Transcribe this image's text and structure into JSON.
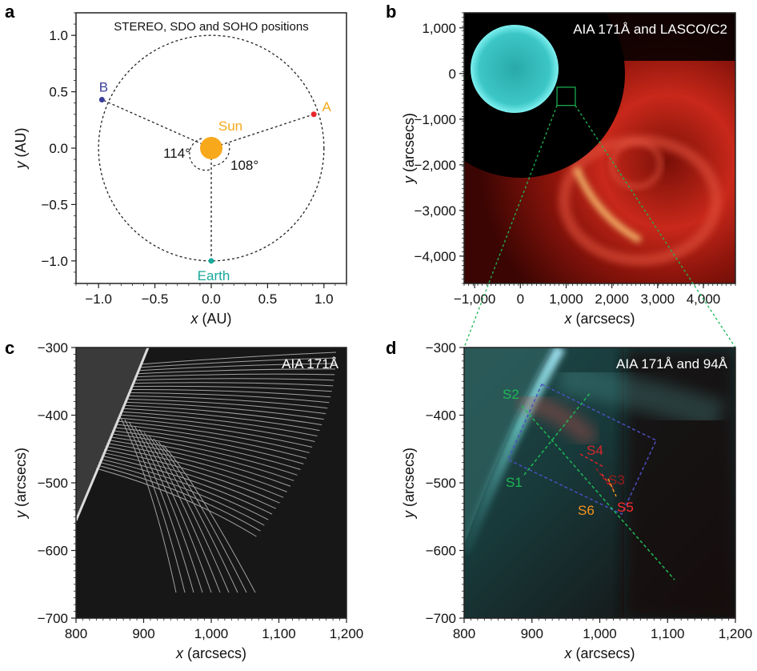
{
  "chart_data": [
    {
      "panel": "a",
      "type": "scatter",
      "title": "STEREO, SDO and SOHO positions",
      "xlabel_var": "x",
      "xlabel_unit": " (AU)",
      "ylabel_var": "y",
      "ylabel_unit": " (AU)",
      "xlim": [
        -1.2,
        1.2
      ],
      "ylim": [
        -1.2,
        1.2
      ],
      "xticks": [
        -1.0,
        -0.5,
        0.0,
        0.5,
        1.0
      ],
      "xtick_labels": [
        "−1.0",
        "−0.5",
        "0.0",
        "0.5",
        "1.0"
      ],
      "yticks": [
        1.0,
        0.5,
        0.0,
        -0.5,
        -1.0
      ],
      "ytick_labels": [
        "1.0",
        "0.5",
        "0.0",
        "−0.5",
        "−1.0"
      ],
      "orbit_radius": 1.0,
      "points": [
        {
          "label": "Sun",
          "x": 0.0,
          "y": 0.0,
          "color": "#f7a81b"
        },
        {
          "label": "A",
          "x": 0.91,
          "y": 0.3,
          "color": "#e8262b",
          "label_color": "#f7a81b"
        },
        {
          "label": "B",
          "x": -0.97,
          "y": 0.43,
          "color": "#3a3f9a"
        },
        {
          "label": "Earth",
          "x": 0.0,
          "y": -1.0,
          "color": "#19a99a"
        }
      ],
      "angles": [
        "114°",
        "108°"
      ],
      "grid": false
    },
    {
      "panel": "b",
      "type": "image",
      "title": "AIA 171Å and LASCO/C2",
      "xlabel_var": "x",
      "xlabel_unit": " (arcsecs)",
      "ylabel_var": "y",
      "ylabel_unit": " (arcsecs)",
      "xlim": [
        -1230,
        4700
      ],
      "ylim": [
        -4600,
        1330
      ],
      "xticks": [
        -1000,
        0,
        1000,
        2000,
        3000,
        4000
      ],
      "xtick_labels": [
        "−1,000",
        "0",
        "1,000",
        "2,000",
        "3,000",
        "4,000"
      ],
      "yticks": [
        1000,
        0,
        -1000,
        -2000,
        -3000,
        -4000
      ],
      "ytick_labels": [
        "1,000",
        "0",
        "−1,000",
        "−2,000",
        "−3,000",
        "−4,000"
      ],
      "zoom_box": {
        "x": [
          800,
          1200
        ],
        "y": [
          -700,
          -300
        ],
        "color": "#1db954"
      }
    },
    {
      "panel": "c",
      "type": "image",
      "title": "AIA 171Å",
      "xlabel_var": "x",
      "xlabel_unit": " (arcsecs)",
      "ylabel_var": "y",
      "ylabel_unit": " (arcsecs)",
      "xlim": [
        800,
        1200
      ],
      "ylim": [
        -700,
        -300
      ],
      "xticks": [
        800,
        900,
        1000,
        1100,
        1200
      ],
      "xtick_labels": [
        "800",
        "900",
        "1,000",
        "1,100",
        "1,200"
      ],
      "yticks": [
        -300,
        -400,
        -500,
        -600,
        -700
      ],
      "ytick_labels": [
        "−300",
        "−400",
        "−500",
        "−600",
        "−700"
      ]
    },
    {
      "panel": "d",
      "type": "image",
      "title": "AIA 171Å and 94Å",
      "xlabel_var": "x",
      "xlabel_unit": " (arcsecs)",
      "ylabel_var": "y",
      "ylabel_unit": " (arcsecs)",
      "xlim": [
        800,
        1200
      ],
      "ylim": [
        -700,
        -300
      ],
      "xticks": [
        800,
        900,
        1000,
        1100,
        1200
      ],
      "xtick_labels": [
        "800",
        "900",
        "1,000",
        "1,100",
        "1,200"
      ],
      "yticks": [
        -300,
        -400,
        -500,
        -600,
        -700
      ],
      "ytick_labels": [
        "−300",
        "−400",
        "−500",
        "−600",
        "−700"
      ],
      "slits": [
        {
          "label": "S1",
          "color": "#1db954"
        },
        {
          "label": "S2",
          "color": "#1db954"
        },
        {
          "label": "S3",
          "color": "#9b1b1e"
        },
        {
          "label": "S4",
          "color": "#d9262b"
        },
        {
          "label": "S5",
          "color": "#ff2a2a"
        },
        {
          "label": "S6",
          "color": "#f7941d"
        }
      ],
      "box_color": "#4a4fc0"
    }
  ]
}
